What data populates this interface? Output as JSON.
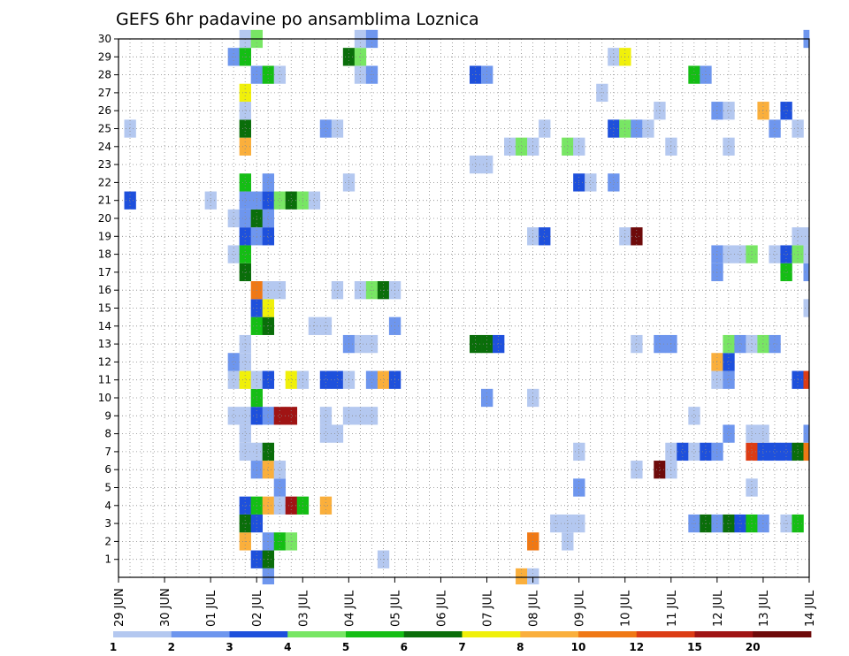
{
  "chart_data": {
    "type": "heatmap",
    "title": "GEFS 6hr padavine po ansamblima Loznica",
    "x_tick_labels": [
      "29 JUN",
      "30 JUN",
      "01 JUL",
      "02 JUL",
      "03 JUL",
      "04 JUL",
      "05 JUL",
      "06 JUL",
      "07 JUL",
      "08 JUL",
      "09 JUL",
      "10 JUL",
      "11 JUL",
      "12 JUL",
      "13 JUL",
      "14 JUL"
    ],
    "x_steps_per_day": 4,
    "x_range_steps": [
      0,
      60
    ],
    "y_tick_labels": [
      "1",
      "2",
      "3",
      "4",
      "5",
      "6",
      "7",
      "8",
      "9",
      "10",
      "11",
      "12",
      "13",
      "14",
      "15",
      "16",
      "17",
      "18",
      "19",
      "20",
      "21",
      "22",
      "23",
      "24",
      "25",
      "26",
      "27",
      "28",
      "29",
      "30"
    ],
    "ylim": [
      0,
      30
    ],
    "grid": true,
    "legend_position": "bottom",
    "colorbar": {
      "colors": [
        "#b4c8f0",
        "#6e96ee",
        "#1e50dc",
        "#78e664",
        "#14be14",
        "#0a6e0a",
        "#f0f00a",
        "#faaf3c",
        "#f07814",
        "#dc3c14",
        "#a01414",
        "#6e0a0a"
      ],
      "labels": [
        "1",
        "2",
        "3",
        "4",
        "5",
        "6",
        "7",
        "8",
        "10",
        "12",
        "15",
        "20"
      ]
    },
    "cells": [
      {
        "y": 1,
        "x": [
          12
        ],
        "c": 2
      },
      {
        "y": 1,
        "x": [
          13
        ],
        "c": 5
      },
      {
        "y": 1,
        "x": [
          23
        ],
        "c": 0
      },
      {
        "y": 2,
        "x": [
          11
        ],
        "c": 7
      },
      {
        "y": 2,
        "x": [
          13
        ],
        "c": 1
      },
      {
        "y": 2,
        "x": [
          14
        ],
        "c": 4
      },
      {
        "y": 2,
        "x": [
          15
        ],
        "c": 3
      },
      {
        "y": 2,
        "x": [
          36
        ],
        "c": 8
      },
      {
        "y": 2,
        "x": [
          39
        ],
        "c": 0
      },
      {
        "y": 3,
        "x": [
          11
        ],
        "c": 5
      },
      {
        "y": 3,
        "x": [
          12
        ],
        "c": 2
      },
      {
        "y": 3,
        "x": [
          38,
          39,
          40
        ],
        "c": 0
      },
      {
        "y": 3,
        "x": [
          50
        ],
        "c": 1
      },
      {
        "y": 3,
        "x": [
          51
        ],
        "c": 5
      },
      {
        "y": 3,
        "x": [
          52
        ],
        "c": 1
      },
      {
        "y": 3,
        "x": [
          53
        ],
        "c": 5
      },
      {
        "y": 3,
        "x": [
          54
        ],
        "c": 2
      },
      {
        "y": 3,
        "x": [
          55
        ],
        "c": 4
      },
      {
        "y": 3,
        "x": [
          56
        ],
        "c": 1
      },
      {
        "y": 3,
        "x": [
          58
        ],
        "c": 0
      },
      {
        "y": 3,
        "x": [
          59
        ],
        "c": 4
      },
      {
        "y": 4,
        "x": [
          11
        ],
        "c": 2
      },
      {
        "y": 4,
        "x": [
          12
        ],
        "c": 4
      },
      {
        "y": 4,
        "x": [
          13
        ],
        "c": 7
      },
      {
        "y": 4,
        "x": [
          14
        ],
        "c": 0
      },
      {
        "y": 4,
        "x": [
          15
        ],
        "c": 10
      },
      {
        "y": 4,
        "x": [
          16
        ],
        "c": 4
      },
      {
        "y": 4,
        "x": [
          18
        ],
        "c": 7
      },
      {
        "y": 5,
        "x": [
          14
        ],
        "c": 1
      },
      {
        "y": 5,
        "x": [
          40
        ],
        "c": 1
      },
      {
        "y": 5,
        "x": [
          55
        ],
        "c": 0
      },
      {
        "y": 6,
        "x": [
          12
        ],
        "c": 1
      },
      {
        "y": 6,
        "x": [
          13
        ],
        "c": 7
      },
      {
        "y": 6,
        "x": [
          14
        ],
        "c": 0
      },
      {
        "y": 6,
        "x": [
          45
        ],
        "c": 0
      },
      {
        "y": 6,
        "x": [
          47
        ],
        "c": 11
      },
      {
        "y": 6,
        "x": [
          48
        ],
        "c": 0
      },
      {
        "y": 7,
        "x": [
          11,
          12
        ],
        "c": 0
      },
      {
        "y": 7,
        "x": [
          13
        ],
        "c": 5
      },
      {
        "y": 7,
        "x": [
          40
        ],
        "c": 0
      },
      {
        "y": 7,
        "x": [
          48
        ],
        "c": 0
      },
      {
        "y": 7,
        "x": [
          49
        ],
        "c": 2
      },
      {
        "y": 7,
        "x": [
          50
        ],
        "c": 0
      },
      {
        "y": 7,
        "x": [
          51
        ],
        "c": 2
      },
      {
        "y": 7,
        "x": [
          52
        ],
        "c": 1
      },
      {
        "y": 7,
        "x": [
          55
        ],
        "c": 9
      },
      {
        "y": 7,
        "x": [
          56,
          57,
          58
        ],
        "c": 2
      },
      {
        "y": 7,
        "x": [
          59
        ],
        "c": 5
      },
      {
        "y": 7,
        "x": [
          60
        ],
        "c": 8
      },
      {
        "y": 8,
        "x": [
          11
        ],
        "c": 0
      },
      {
        "y": 8,
        "x": [
          18,
          19
        ],
        "c": 0
      },
      {
        "y": 8,
        "x": [
          53
        ],
        "c": 1
      },
      {
        "y": 8,
        "x": [
          55,
          56
        ],
        "c": 0
      },
      {
        "y": 8,
        "x": [
          60
        ],
        "c": 1
      },
      {
        "y": 9,
        "x": [
          10,
          11
        ],
        "c": 0
      },
      {
        "y": 9,
        "x": [
          12
        ],
        "c": 2
      },
      {
        "y": 9,
        "x": [
          13
        ],
        "c": 1
      },
      {
        "y": 9,
        "x": [
          14
        ],
        "c": 10
      },
      {
        "y": 9,
        "x": [
          15
        ],
        "c": 10
      },
      {
        "y": 9,
        "x": [
          18
        ],
        "c": 0
      },
      {
        "y": 9,
        "x": [
          20,
          21,
          22
        ],
        "c": 0
      },
      {
        "y": 9,
        "x": [
          50
        ],
        "c": 0
      },
      {
        "y": 10,
        "x": [
          12
        ],
        "c": 4
      },
      {
        "y": 10,
        "x": [
          32
        ],
        "c": 1
      },
      {
        "y": 10,
        "x": [
          36
        ],
        "c": 0
      },
      {
        "y": 11,
        "x": [
          10
        ],
        "c": 0
      },
      {
        "y": 11,
        "x": [
          11
        ],
        "c": 6
      },
      {
        "y": 11,
        "x": [
          12
        ],
        "c": 0
      },
      {
        "y": 11,
        "x": [
          13
        ],
        "c": 2
      },
      {
        "y": 11,
        "x": [
          15
        ],
        "c": 6
      },
      {
        "y": 11,
        "x": [
          16
        ],
        "c": 0
      },
      {
        "y": 11,
        "x": [
          18,
          19
        ],
        "c": 2
      },
      {
        "y": 11,
        "x": [
          20
        ],
        "c": 0
      },
      {
        "y": 11,
        "x": [
          22
        ],
        "c": 1
      },
      {
        "y": 11,
        "x": [
          23
        ],
        "c": 7
      },
      {
        "y": 11,
        "x": [
          24
        ],
        "c": 2
      },
      {
        "y": 11,
        "x": [
          52
        ],
        "c": 0
      },
      {
        "y": 11,
        "x": [
          53
        ],
        "c": 1
      },
      {
        "y": 11,
        "x": [
          59
        ],
        "c": 2
      },
      {
        "y": 11,
        "x": [
          60
        ],
        "c": 9
      },
      {
        "y": 12,
        "x": [
          10
        ],
        "c": 1
      },
      {
        "y": 12,
        "x": [
          11
        ],
        "c": 0
      },
      {
        "y": 12,
        "x": [
          52
        ],
        "c": 7
      },
      {
        "y": 12,
        "x": [
          53
        ],
        "c": 2
      },
      {
        "y": 13,
        "x": [
          11
        ],
        "c": 0
      },
      {
        "y": 13,
        "x": [
          20
        ],
        "c": 1
      },
      {
        "y": 13,
        "x": [
          21,
          22
        ],
        "c": 0
      },
      {
        "y": 13,
        "x": [
          31,
          32
        ],
        "c": 5
      },
      {
        "y": 13,
        "x": [
          33
        ],
        "c": 2
      },
      {
        "y": 13,
        "x": [
          45
        ],
        "c": 0
      },
      {
        "y": 13,
        "x": [
          47,
          48
        ],
        "c": 1
      },
      {
        "y": 13,
        "x": [
          53
        ],
        "c": 3
      },
      {
        "y": 13,
        "x": [
          54
        ],
        "c": 1
      },
      {
        "y": 13,
        "x": [
          55
        ],
        "c": 0
      },
      {
        "y": 13,
        "x": [
          56
        ],
        "c": 3
      },
      {
        "y": 13,
        "x": [
          57
        ],
        "c": 1
      },
      {
        "y": 14,
        "x": [
          12
        ],
        "c": 4
      },
      {
        "y": 14,
        "x": [
          13
        ],
        "c": 5
      },
      {
        "y": 14,
        "x": [
          17,
          18
        ],
        "c": 0
      },
      {
        "y": 14,
        "x": [
          24
        ],
        "c": 1
      },
      {
        "y": 15,
        "x": [
          12
        ],
        "c": 2
      },
      {
        "y": 15,
        "x": [
          13
        ],
        "c": 6
      },
      {
        "y": 15,
        "x": [
          60
        ],
        "c": 0
      },
      {
        "y": 16,
        "x": [
          12
        ],
        "c": 8
      },
      {
        "y": 16,
        "x": [
          13,
          14
        ],
        "c": 0
      },
      {
        "y": 16,
        "x": [
          19
        ],
        "c": 0
      },
      {
        "y": 16,
        "x": [
          21
        ],
        "c": 0
      },
      {
        "y": 16,
        "x": [
          22
        ],
        "c": 3
      },
      {
        "y": 16,
        "x": [
          23
        ],
        "c": 5
      },
      {
        "y": 16,
        "x": [
          24
        ],
        "c": 0
      },
      {
        "y": 17,
        "x": [
          11
        ],
        "c": 5
      },
      {
        "y": 17,
        "x": [
          52
        ],
        "c": 1
      },
      {
        "y": 17,
        "x": [
          58
        ],
        "c": 4
      },
      {
        "y": 17,
        "x": [
          60
        ],
        "c": 1
      },
      {
        "y": 18,
        "x": [
          10
        ],
        "c": 0
      },
      {
        "y": 18,
        "x": [
          11
        ],
        "c": 4
      },
      {
        "y": 18,
        "x": [
          52
        ],
        "c": 1
      },
      {
        "y": 18,
        "x": [
          53
        ],
        "c": 0
      },
      {
        "y": 18,
        "x": [
          54
        ],
        "c": 0
      },
      {
        "y": 18,
        "x": [
          55
        ],
        "c": 3
      },
      {
        "y": 18,
        "x": [
          57
        ],
        "c": 0
      },
      {
        "y": 18,
        "x": [
          58
        ],
        "c": 2
      },
      {
        "y": 18,
        "x": [
          59
        ],
        "c": 3
      },
      {
        "y": 18,
        "x": [
          60
        ],
        "c": 0
      },
      {
        "y": 19,
        "x": [
          11
        ],
        "c": 2
      },
      {
        "y": 19,
        "x": [
          12
        ],
        "c": 1
      },
      {
        "y": 19,
        "x": [
          13
        ],
        "c": 2
      },
      {
        "y": 19,
        "x": [
          36
        ],
        "c": 0
      },
      {
        "y": 19,
        "x": [
          37
        ],
        "c": 2
      },
      {
        "y": 19,
        "x": [
          44
        ],
        "c": 0
      },
      {
        "y": 19,
        "x": [
          45
        ],
        "c": 11
      },
      {
        "y": 19,
        "x": [
          59,
          60
        ],
        "c": 0
      },
      {
        "y": 20,
        "x": [
          10
        ],
        "c": 0
      },
      {
        "y": 20,
        "x": [
          11
        ],
        "c": 1
      },
      {
        "y": 20,
        "x": [
          12
        ],
        "c": 5
      },
      {
        "y": 20,
        "x": [
          13
        ],
        "c": 1
      },
      {
        "y": 21,
        "x": [
          1
        ],
        "c": 2
      },
      {
        "y": 21,
        "x": [
          8
        ],
        "c": 0
      },
      {
        "y": 21,
        "x": [
          11
        ],
        "c": 1
      },
      {
        "y": 21,
        "x": [
          12
        ],
        "c": 1
      },
      {
        "y": 21,
        "x": [
          13
        ],
        "c": 2
      },
      {
        "y": 21,
        "x": [
          14
        ],
        "c": 3
      },
      {
        "y": 21,
        "x": [
          15
        ],
        "c": 5
      },
      {
        "y": 21,
        "x": [
          16
        ],
        "c": 3
      },
      {
        "y": 21,
        "x": [
          17
        ],
        "c": 0
      },
      {
        "y": 22,
        "x": [
          11
        ],
        "c": 4
      },
      {
        "y": 22,
        "x": [
          13
        ],
        "c": 1
      },
      {
        "y": 22,
        "x": [
          20
        ],
        "c": 0
      },
      {
        "y": 22,
        "x": [
          40
        ],
        "c": 2
      },
      {
        "y": 22,
        "x": [
          41
        ],
        "c": 0
      },
      {
        "y": 22,
        "x": [
          43
        ],
        "c": 1
      },
      {
        "y": 23,
        "x": [
          31,
          32
        ],
        "c": 0
      },
      {
        "y": 24,
        "x": [
          11
        ],
        "c": 7
      },
      {
        "y": 24,
        "x": [
          34
        ],
        "c": 0
      },
      {
        "y": 24,
        "x": [
          35
        ],
        "c": 3
      },
      {
        "y": 24,
        "x": [
          36
        ],
        "c": 0
      },
      {
        "y": 24,
        "x": [
          39
        ],
        "c": 3
      },
      {
        "y": 24,
        "x": [
          40
        ],
        "c": 0
      },
      {
        "y": 24,
        "x": [
          48
        ],
        "c": 0
      },
      {
        "y": 24,
        "x": [
          53
        ],
        "c": 0
      },
      {
        "y": 25,
        "x": [
          1
        ],
        "c": 0
      },
      {
        "y": 25,
        "x": [
          11
        ],
        "c": 5
      },
      {
        "y": 25,
        "x": [
          18
        ],
        "c": 1
      },
      {
        "y": 25,
        "x": [
          19
        ],
        "c": 0
      },
      {
        "y": 25,
        "x": [
          37
        ],
        "c": 0
      },
      {
        "y": 25,
        "x": [
          43
        ],
        "c": 2
      },
      {
        "y": 25,
        "x": [
          44
        ],
        "c": 3
      },
      {
        "y": 25,
        "x": [
          45
        ],
        "c": 1
      },
      {
        "y": 25,
        "x": [
          46
        ],
        "c": 0
      },
      {
        "y": 25,
        "x": [
          57
        ],
        "c": 1
      },
      {
        "y": 25,
        "x": [
          59
        ],
        "c": 0
      },
      {
        "y": 26,
        "x": [
          11
        ],
        "c": 0
      },
      {
        "y": 26,
        "x": [
          47
        ],
        "c": 0
      },
      {
        "y": 26,
        "x": [
          52
        ],
        "c": 1
      },
      {
        "y": 26,
        "x": [
          53
        ],
        "c": 0
      },
      {
        "y": 26,
        "x": [
          56
        ],
        "c": 7
      },
      {
        "y": 26,
        "x": [
          58
        ],
        "c": 2
      },
      {
        "y": 27,
        "x": [
          11
        ],
        "c": 6
      },
      {
        "y": 27,
        "x": [
          42
        ],
        "c": 0
      },
      {
        "y": 28,
        "x": [
          12
        ],
        "c": 1
      },
      {
        "y": 28,
        "x": [
          13
        ],
        "c": 4
      },
      {
        "y": 28,
        "x": [
          14
        ],
        "c": 0
      },
      {
        "y": 28,
        "x": [
          21
        ],
        "c": 0
      },
      {
        "y": 28,
        "x": [
          22
        ],
        "c": 1
      },
      {
        "y": 28,
        "x": [
          31
        ],
        "c": 2
      },
      {
        "y": 28,
        "x": [
          32
        ],
        "c": 1
      },
      {
        "y": 28,
        "x": [
          50
        ],
        "c": 4
      },
      {
        "y": 28,
        "x": [
          51
        ],
        "c": 1
      },
      {
        "y": 29,
        "x": [
          10
        ],
        "c": 1
      },
      {
        "y": 29,
        "x": [
          11
        ],
        "c": 4
      },
      {
        "y": 29,
        "x": [
          20
        ],
        "c": 5
      },
      {
        "y": 29,
        "x": [
          21
        ],
        "c": 3
      },
      {
        "y": 29,
        "x": [
          43
        ],
        "c": 0
      },
      {
        "y": 29,
        "x": [
          44
        ],
        "c": 6
      },
      {
        "y": 30,
        "x": [
          11
        ],
        "c": 0
      },
      {
        "y": 30,
        "x": [
          12
        ],
        "c": 3
      },
      {
        "y": 30,
        "x": [
          21
        ],
        "c": 0
      },
      {
        "y": 30,
        "x": [
          22
        ],
        "c": 1
      },
      {
        "y": 30,
        "x": [
          60
        ],
        "c": 1
      },
      {
        "y": 0,
        "x": [
          13
        ],
        "c": 1
      },
      {
        "y": 0,
        "x": [
          35
        ],
        "c": 7
      },
      {
        "y": 0,
        "x": [
          36
        ],
        "c": 0
      }
    ]
  }
}
